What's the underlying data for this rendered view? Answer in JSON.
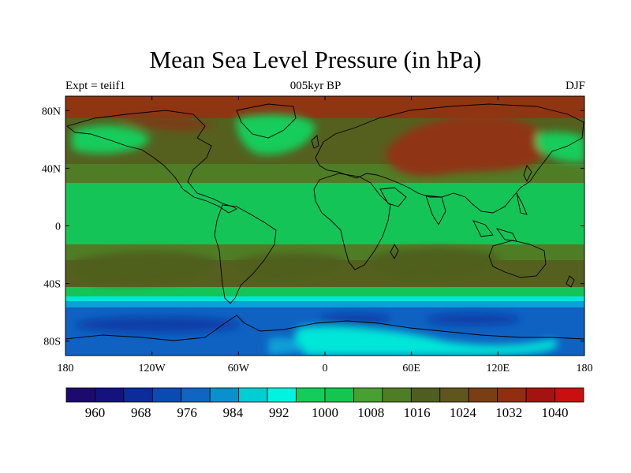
{
  "title": "Mean Sea Level Pressure (in hPa)",
  "left_label": "Expt = teiif1",
  "center_label": "005kyr BP",
  "right_label": "DJF",
  "lon_ticks": [
    {
      "lon": -180,
      "label": "180"
    },
    {
      "lon": -120,
      "label": "120W"
    },
    {
      "lon": -60,
      "label": "60W"
    },
    {
      "lon": 0,
      "label": "0"
    },
    {
      "lon": 60,
      "label": "60E"
    },
    {
      "lon": 120,
      "label": "120E"
    },
    {
      "lon": 180,
      "label": "180"
    }
  ],
  "lat_ticks": [
    {
      "lat": 80,
      "label": "80N"
    },
    {
      "lat": 40,
      "label": "40N"
    },
    {
      "lat": 0,
      "label": "0"
    },
    {
      "lat": -40,
      "label": "40S"
    },
    {
      "lat": -80,
      "label": "80S"
    }
  ],
  "colorbar": {
    "colors": [
      "#1c0a6e",
      "#14127d",
      "#0c2c9a",
      "#0a4bb0",
      "#0f65bf",
      "#0a90cc",
      "#00ced2",
      "#00f2e0",
      "#14cc5a",
      "#14c650",
      "#48a030",
      "#4f7d25",
      "#4f5e1e",
      "#5e561c",
      "#7a3e14",
      "#8f2f10",
      "#a31410",
      "#c90f0f"
    ],
    "labels": [
      "960",
      "968",
      "976",
      "984",
      "992",
      "1000",
      "1008",
      "1016",
      "1024",
      "1032",
      "1040"
    ]
  },
  "colors": {
    "high": "#8f3512",
    "mid_high": "#55601f",
    "mid": "#4f7d25",
    "low_mid": "#15c457",
    "cyan": "#00e6d8",
    "light_blue": "#0aa0d8",
    "blue": "#0f62c2",
    "deep_blue": "#0b3da8"
  }
}
